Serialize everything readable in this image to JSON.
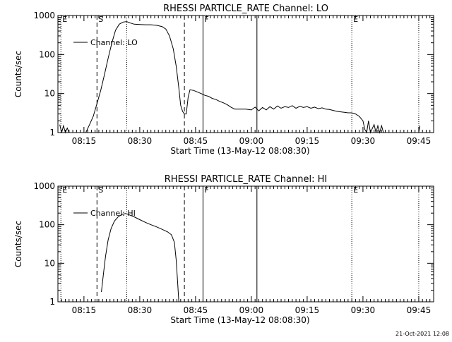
{
  "footer": {
    "date": "21-Oct-2021 12:08"
  },
  "chart_data": [
    {
      "type": "line",
      "title": "RHESSI PARTICLE_RATE Channel: LO",
      "xlabel": "Start Time (13-May-12 08:08:30)",
      "ylabel": "Counts/sec",
      "yscale": "log",
      "ylim": [
        1,
        1000
      ],
      "xlim": [
        "08:08",
        "09:49"
      ],
      "x_ticks": [
        "08:15",
        "08:30",
        "08:45",
        "09:00",
        "09:15",
        "09:30",
        "09:45"
      ],
      "y_ticks": [
        "1",
        "10",
        "100",
        "1000"
      ],
      "legend": {
        "label": "Channel: LO",
        "placement": "top-left"
      },
      "markers": [
        {
          "label": "E",
          "time": "08:08.8",
          "style": "dotted"
        },
        {
          "label": "S",
          "time": "08:18.5",
          "style": "dashed"
        },
        {
          "label": "",
          "time": "08:26.5",
          "style": "dotted"
        },
        {
          "label": "",
          "time": "08:42",
          "style": "dashed"
        },
        {
          "label": "F",
          "time": "08:47",
          "style": "solid"
        },
        {
          "label": "",
          "time": "09:01.5",
          "style": "solid"
        },
        {
          "label": "E",
          "time": "09:27",
          "style": "dotted"
        },
        {
          "label": "",
          "time": "09:45",
          "style": "dotted"
        }
      ],
      "series": [
        {
          "values": [
            [
              "08:08.5",
              1.6
            ],
            [
              "08:09",
              1.0
            ],
            [
              "08:09.5",
              1.5
            ],
            [
              "08:10",
              1.0
            ],
            [
              "08:10.5",
              1.3
            ],
            [
              "08:11",
              1.0
            ],
            [
              "08:15.5",
              1.0
            ],
            [
              "08:16.5",
              1.6
            ],
            [
              "08:17.5",
              2.6
            ],
            [
              "08:18.5",
              5.5
            ],
            [
              "08:19.5",
              12
            ],
            [
              "08:20.5",
              30
            ],
            [
              "08:21.5",
              80
            ],
            [
              "08:22.5",
              200
            ],
            [
              "08:23.5",
              420
            ],
            [
              "08:24.5",
              600
            ],
            [
              "08:25.5",
              680
            ],
            [
              "08:26.5",
              700
            ],
            [
              "08:27.5",
              640
            ],
            [
              "08:28.5",
              600
            ],
            [
              "08:30",
              590
            ],
            [
              "08:31.5",
              580
            ],
            [
              "08:33",
              580
            ],
            [
              "08:34.5",
              560
            ],
            [
              "08:36",
              520
            ],
            [
              "08:37",
              450
            ],
            [
              "08:38",
              300
            ],
            [
              "08:39",
              140
            ],
            [
              "08:39.8",
              50
            ],
            [
              "08:40.5",
              14
            ],
            [
              "08:41",
              5
            ],
            [
              "08:41.5",
              3.5
            ],
            [
              "08:42",
              3
            ],
            [
              "08:42.5",
              3
            ],
            [
              "08:43",
              8
            ],
            [
              "08:43.5",
              12.5
            ],
            [
              "08:44.5",
              12
            ],
            [
              "08:45.5",
              11
            ],
            [
              "08:46.5",
              10
            ],
            [
              "08:47.5",
              9
            ],
            [
              "08:48.5",
              8.5
            ],
            [
              "08:49.5",
              7.5
            ],
            [
              "08:50.5",
              7
            ],
            [
              "08:51.5",
              6.3
            ],
            [
              "08:52.5",
              5.8
            ],
            [
              "08:53.5",
              5.2
            ],
            [
              "08:54.5",
              4.5
            ],
            [
              "08:55.5",
              4.0
            ],
            [
              "08:57",
              4.0
            ],
            [
              "08:58.5",
              4.0
            ],
            [
              "09:00",
              3.8
            ],
            [
              "09:01",
              4.5
            ],
            [
              "09:02",
              3.6
            ],
            [
              "09:03",
              4.4
            ],
            [
              "09:04",
              3.8
            ],
            [
              "09:05",
              4.6
            ],
            [
              "09:06",
              4.0
            ],
            [
              "09:07",
              4.8
            ],
            [
              "09:08",
              4.2
            ],
            [
              "09:09",
              4.6
            ],
            [
              "09:10",
              4.4
            ],
            [
              "09:11",
              4.9
            ],
            [
              "09:12",
              4.2
            ],
            [
              "09:13",
              4.7
            ],
            [
              "09:14",
              4.4
            ],
            [
              "09:15",
              4.6
            ],
            [
              "09:16",
              4.2
            ],
            [
              "09:17",
              4.5
            ],
            [
              "09:18",
              4.1
            ],
            [
              "09:19",
              4.3
            ],
            [
              "09:20",
              4.0
            ],
            [
              "09:21",
              3.9
            ],
            [
              "09:22",
              3.7
            ],
            [
              "09:23",
              3.5
            ],
            [
              "09:24",
              3.4
            ],
            [
              "09:25",
              3.3
            ],
            [
              "09:26",
              3.2
            ],
            [
              "09:27",
              3.2
            ],
            [
              "09:28",
              3.0
            ],
            [
              "09:29",
              2.6
            ],
            [
              "09:30",
              2.0
            ],
            [
              "09:30.5",
              1.2
            ],
            [
              "09:31",
              1.0
            ],
            [
              "09:31.5",
              2.0
            ],
            [
              "09:32",
              1.0
            ],
            [
              "09:33",
              1.6
            ],
            [
              "09:33.5",
              1.0
            ],
            [
              "09:34",
              1.5
            ],
            [
              "09:34.5",
              1.0
            ],
            [
              "09:35",
              1.5
            ],
            [
              "09:35.5",
              1.0
            ],
            [
              "09:45",
              1.0
            ],
            [
              "09:45.3",
              1.5
            ]
          ]
        }
      ]
    },
    {
      "type": "line",
      "title": "RHESSI PARTICLE_RATE Channel: HI",
      "xlabel": "Start Time (13-May-12 08:08:30)",
      "ylabel": "Counts/sec",
      "yscale": "log",
      "ylim": [
        1,
        1000
      ],
      "xlim": [
        "08:08",
        "09:49"
      ],
      "x_ticks": [
        "08:15",
        "08:30",
        "08:45",
        "09:00",
        "09:15",
        "09:30",
        "09:45"
      ],
      "y_ticks": [
        "1",
        "10",
        "100",
        "1000"
      ],
      "legend": {
        "label": "Channel: HI",
        "placement": "top-left"
      },
      "markers": [
        {
          "label": "E",
          "time": "08:08.8",
          "style": "dotted"
        },
        {
          "label": "S",
          "time": "08:18.5",
          "style": "dashed"
        },
        {
          "label": "",
          "time": "08:26.5",
          "style": "dotted"
        },
        {
          "label": "",
          "time": "08:42",
          "style": "dashed"
        },
        {
          "label": "F",
          "time": "08:47",
          "style": "solid"
        },
        {
          "label": "",
          "time": "09:01.5",
          "style": "solid"
        },
        {
          "label": "E",
          "time": "09:27",
          "style": "dotted"
        },
        {
          "label": "",
          "time": "09:45",
          "style": "dotted"
        }
      ],
      "series": [
        {
          "values": [
            [
              "08:19.7",
              1.8
            ],
            [
              "08:20.2",
              5
            ],
            [
              "08:20.8",
              15
            ],
            [
              "08:21.5",
              40
            ],
            [
              "08:22.3",
              80
            ],
            [
              "08:23.2",
              125
            ],
            [
              "08:24.2",
              160
            ],
            [
              "08:25.2",
              185
            ],
            [
              "08:26.2",
              195
            ],
            [
              "08:27.2",
              180
            ],
            [
              "08:28.5",
              160
            ],
            [
              "08:30",
              135
            ],
            [
              "08:31.5",
              115
            ],
            [
              "08:33",
              100
            ],
            [
              "08:34.5",
              88
            ],
            [
              "08:36",
              76
            ],
            [
              "08:37.5",
              65
            ],
            [
              "08:38.5",
              55
            ],
            [
              "08:39.3",
              35
            ],
            [
              "08:39.8",
              12
            ],
            [
              "08:40.2",
              3
            ],
            [
              "08:40.5",
              1.0
            ]
          ]
        }
      ]
    }
  ]
}
